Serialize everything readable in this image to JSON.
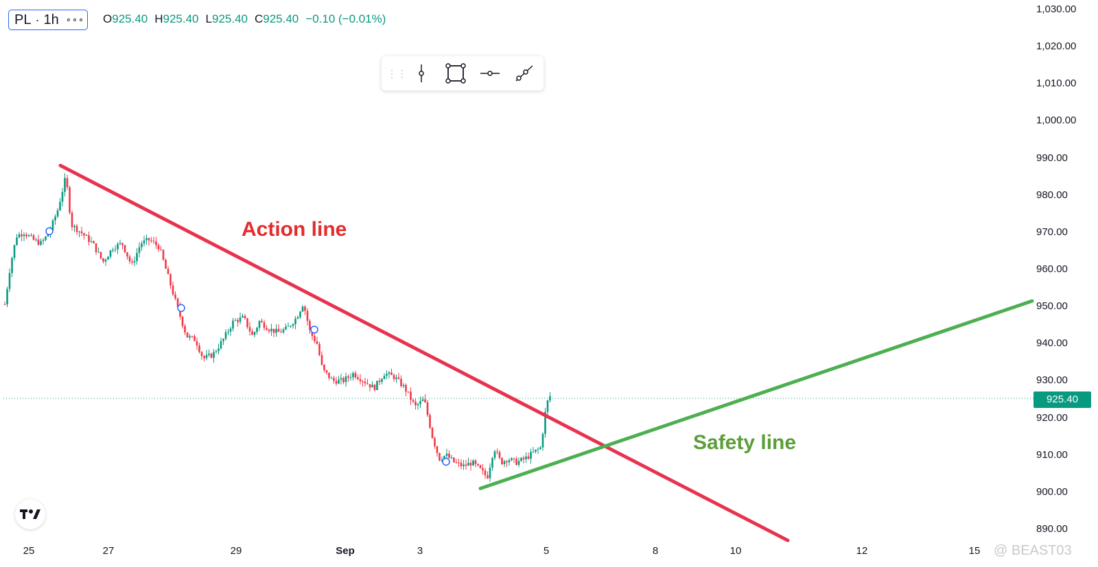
{
  "header": {
    "ticker": "PL",
    "interval": "1h",
    "more": "∘∘∘",
    "ohlc": {
      "o_label": "O",
      "o_value": "925.40",
      "h_label": "H",
      "h_value": "925.40",
      "l_label": "L",
      "l_value": "925.40",
      "c_label": "C",
      "c_value": "925.40",
      "change": "−0.10 (−0.01%)"
    }
  },
  "toolbar": {
    "tools": [
      "vertical-line-tool",
      "rectangle-tool",
      "horizontal-line-tool",
      "trend-line-tool"
    ]
  },
  "annotations": {
    "action_line": "Action line",
    "safety_line": "Safety line"
  },
  "last_price_badge": "925.40",
  "watermark": "@ BEAST03",
  "colors": {
    "up": "#089981",
    "down": "#f23645",
    "action_line": "#e8334f",
    "safety_line": "#4caf50",
    "action_text": "#e52b2b",
    "safety_text": "#5a9e3a"
  },
  "chart_data": {
    "type": "candlestick",
    "symbol": "PL",
    "interval": "1h",
    "x_axis_labels": [
      "25",
      "27",
      "29",
      "Sep",
      "3",
      "5",
      "8",
      "10",
      "12",
      "15"
    ],
    "y_axis_labels": [
      "1,030.00",
      "1,020.00",
      "1,010.00",
      "1,000.00",
      "990.00",
      "980.00",
      "970.00",
      "960.00",
      "950.00",
      "940.00",
      "930.00",
      "920.00",
      "910.00",
      "900.00",
      "890.00"
    ],
    "ylim": [
      886,
      1031
    ],
    "last_price": 925.4,
    "price_path": [
      [
        0,
        952
      ],
      [
        5,
        948
      ],
      [
        15,
        961
      ],
      [
        24,
        969
      ],
      [
        35,
        970
      ],
      [
        48,
        968
      ],
      [
        60,
        967
      ],
      [
        72,
        970
      ],
      [
        84,
        976
      ],
      [
        96,
        985
      ],
      [
        104,
        972
      ],
      [
        118,
        970
      ],
      [
        135,
        967
      ],
      [
        150,
        962
      ],
      [
        165,
        966
      ],
      [
        178,
        967
      ],
      [
        192,
        961
      ],
      [
        205,
        967
      ],
      [
        218,
        968
      ],
      [
        232,
        966
      ],
      [
        245,
        958
      ],
      [
        258,
        950
      ],
      [
        272,
        942
      ],
      [
        285,
        941
      ],
      [
        296,
        936
      ],
      [
        310,
        937
      ],
      [
        325,
        941
      ],
      [
        340,
        946
      ],
      [
        355,
        947
      ],
      [
        368,
        942
      ],
      [
        378,
        946
      ],
      [
        392,
        944
      ],
      [
        405,
        943
      ],
      [
        418,
        944
      ],
      [
        432,
        947
      ],
      [
        442,
        951
      ],
      [
        452,
        943
      ],
      [
        462,
        940
      ],
      [
        470,
        933
      ],
      [
        485,
        930
      ],
      [
        500,
        930
      ],
      [
        515,
        932
      ],
      [
        530,
        930
      ],
      [
        545,
        928
      ],
      [
        560,
        932
      ],
      [
        575,
        931
      ],
      [
        590,
        928
      ],
      [
        605,
        923
      ],
      [
        618,
        925
      ],
      [
        630,
        915
      ],
      [
        640,
        909
      ],
      [
        650,
        910
      ],
      [
        662,
        908
      ],
      [
        675,
        907
      ],
      [
        688,
        908
      ],
      [
        700,
        906
      ],
      [
        710,
        904
      ],
      [
        720,
        912
      ],
      [
        730,
        908
      ],
      [
        740,
        909
      ],
      [
        752,
        908
      ],
      [
        765,
        909
      ],
      [
        780,
        911
      ],
      [
        788,
        912
      ],
      [
        795,
        922
      ],
      [
        800,
        926
      ],
      [
        806,
        925.4
      ]
    ],
    "markers": [
      [
        72,
        970.3
      ],
      [
        264,
        949.6
      ],
      [
        458,
        943.8
      ],
      [
        650,
        908.2
      ]
    ],
    "trendlines": [
      {
        "name": "Action line",
        "points": [
          [
            88,
            988
          ],
          [
            1148,
            887
          ]
        ]
      },
      {
        "name": "Safety line",
        "points": [
          [
            700,
            901
          ],
          [
            1504,
            951.5
          ]
        ]
      }
    ]
  }
}
